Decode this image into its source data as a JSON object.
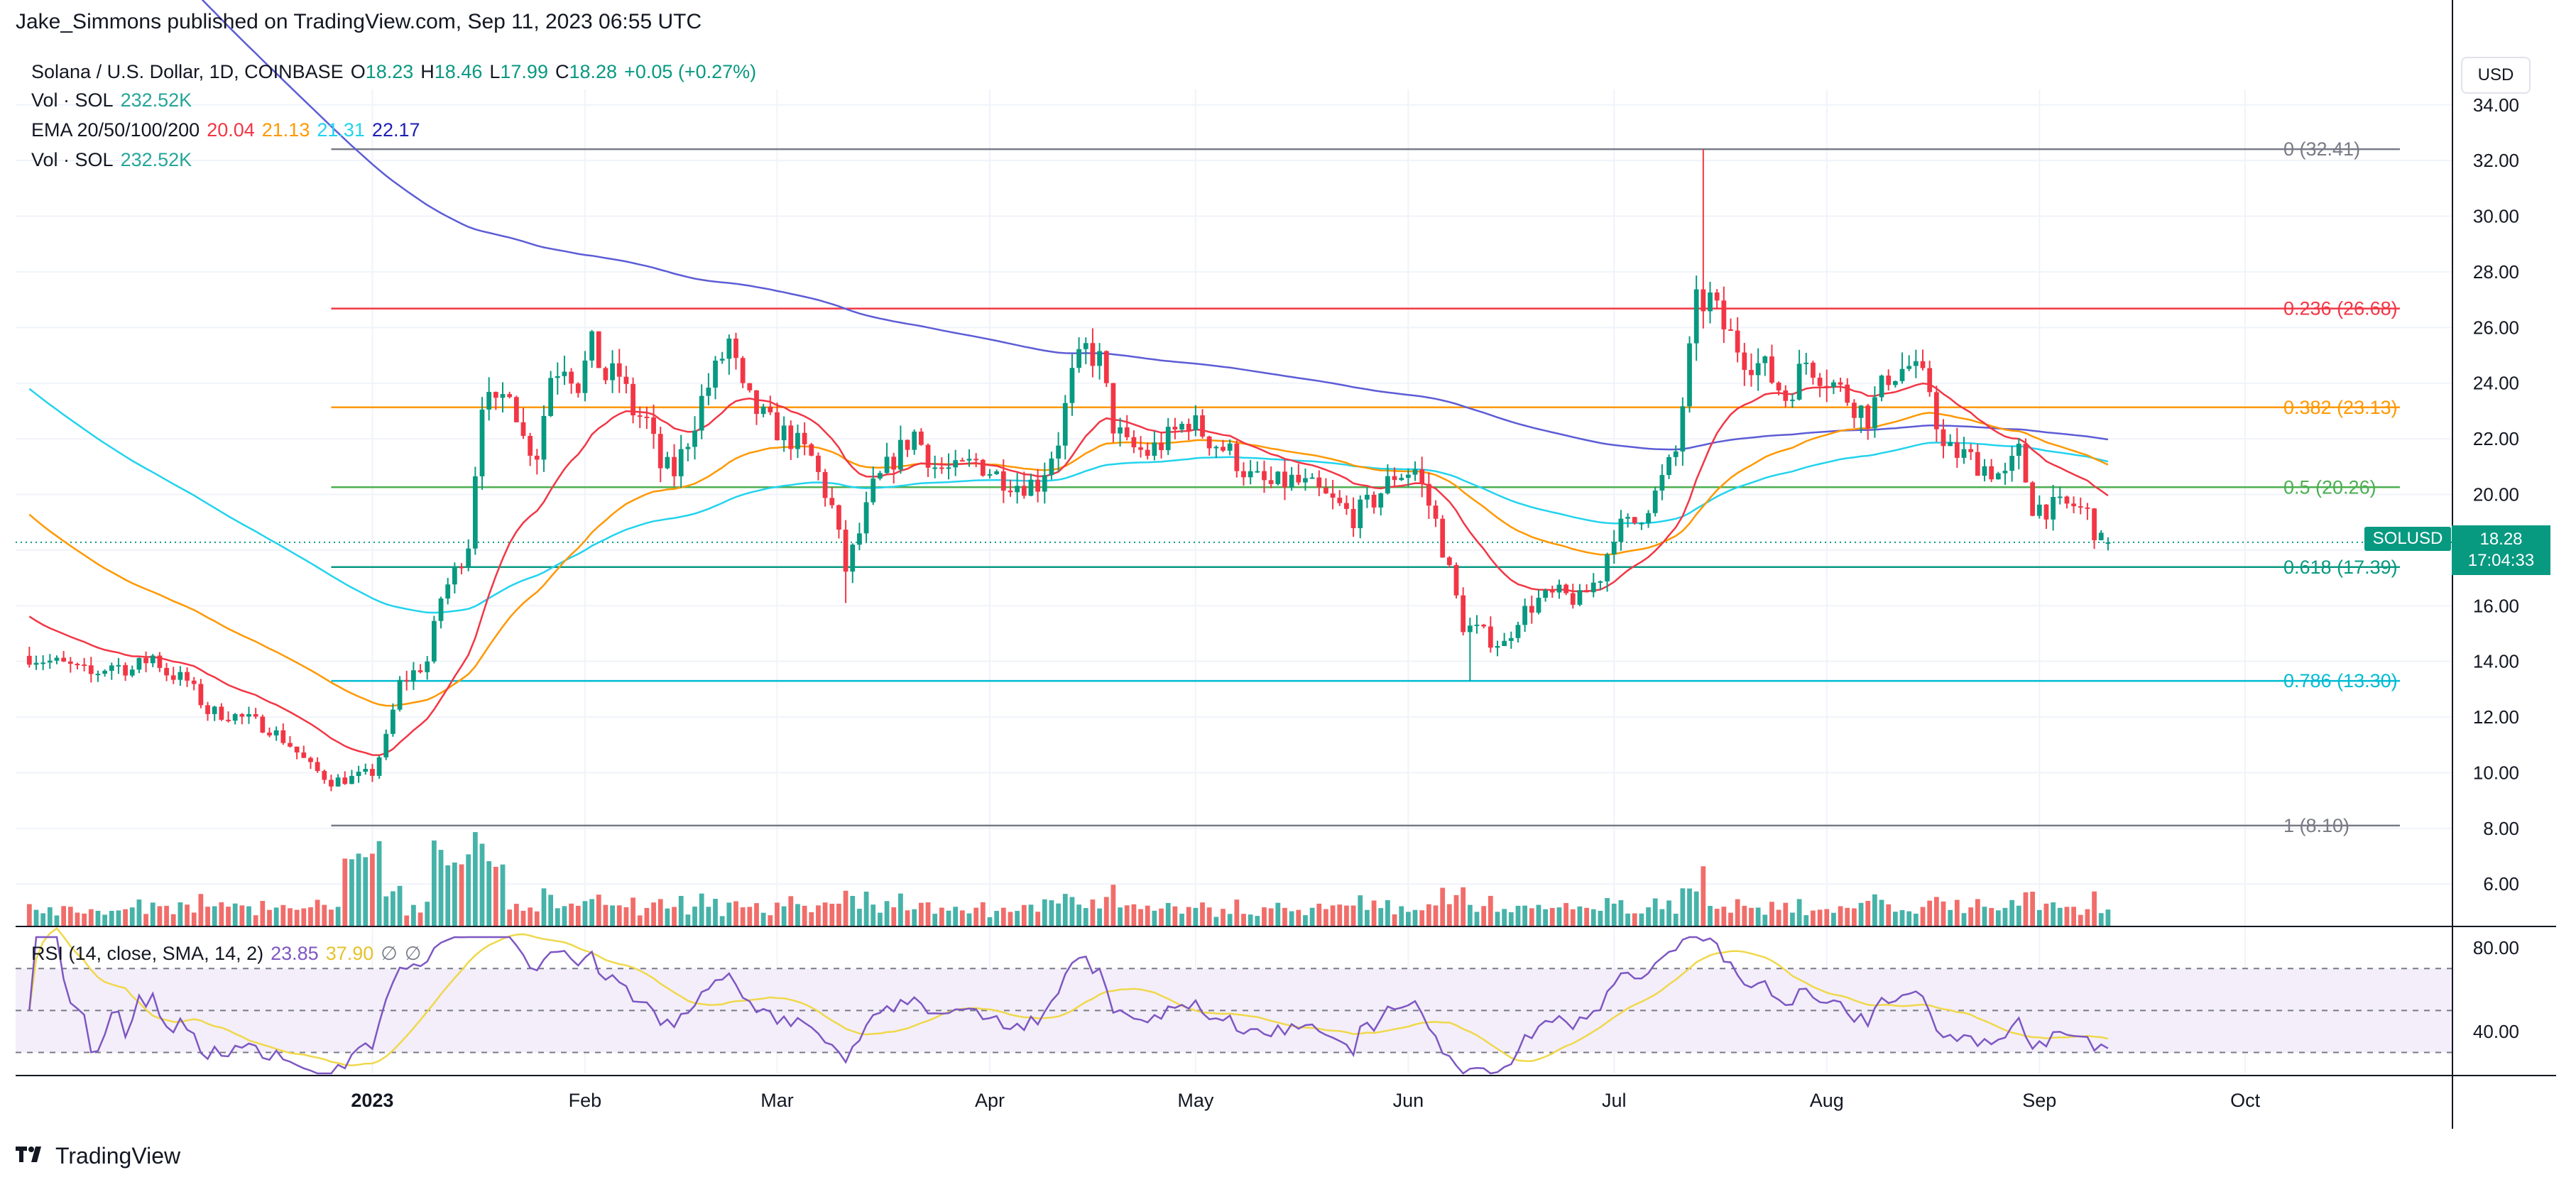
{
  "header": {
    "published_by": "Jake_Simmons published on TradingView.com, Sep 11, 2023 06:55 UTC"
  },
  "legend": {
    "symbol": "Solana / U.S. Dollar, 1D, COINBASE",
    "open_label": "O",
    "open": "18.23",
    "high_label": "H",
    "high": "18.46",
    "low_label": "L",
    "low": "17.99",
    "close_label": "C",
    "close": "18.28",
    "change": "+0.05 (+0.27%)",
    "vol_label": "Vol · SOL",
    "vol_value": "232.52K",
    "ema_label": "EMA 20/50/100/200",
    "ema20": "20.04",
    "ema50": "21.13",
    "ema100": "21.31",
    "ema200": "22.17",
    "vol2_label": "Vol · SOL",
    "vol2_value": "232.52K"
  },
  "rsi_legend": {
    "label": "RSI (14, close, SMA, 14, 2)",
    "rsi": "23.85",
    "sma": "37.90",
    "hidden_glyph": "∅"
  },
  "currency_button": "USD",
  "price_tag": {
    "symbol": "SOLUSD",
    "price": "18.28",
    "countdown": "17:04:33"
  },
  "footer": {
    "brand": "TradingView"
  },
  "colors": {
    "up": "#089981",
    "down": "#f23645",
    "up_vol": "#26a69a",
    "down_vol": "#ef5350",
    "ema20": "#f23645",
    "ema50": "#ff9800",
    "ema100": "#22d3ee",
    "ema200": "#5c5cd6",
    "rsi": "#7e57c2",
    "rsi_sma": "#f0d84a",
    "rsi_band": "#f3eefa"
  },
  "chart_data": {
    "type": "candlestick",
    "title": "Solana / U.S. Dollar, 1D, COINBASE",
    "x_ticks": [
      "2023",
      "Feb",
      "Mar",
      "Apr",
      "May",
      "Jun",
      "Jul",
      "Aug",
      "Sep",
      "Oct"
    ],
    "y_ticks": [
      "34.00",
      "32.00",
      "30.00",
      "28.00",
      "26.00",
      "24.00",
      "22.00",
      "20.00",
      "18.00",
      "16.00",
      "14.00",
      "12.00",
      "10.00",
      "8.00",
      "6.00"
    ],
    "ylim": [
      4.5,
      34.3
    ],
    "rsi_ticks": [
      "80.00",
      "40.00"
    ],
    "rsi_lim": [
      20,
      85
    ],
    "rsi_band": [
      30,
      70
    ],
    "fib_levels": [
      {
        "label": "0 (32.41)",
        "value": 32.41,
        "color": "#787b86"
      },
      {
        "label": "0.236 (26.68)",
        "value": 26.68,
        "color": "#f23645"
      },
      {
        "label": "0.382 (23.13)",
        "value": 23.13,
        "color": "#ff9800"
      },
      {
        "label": "0.5 (20.26)",
        "value": 20.26,
        "color": "#4caf50"
      },
      {
        "label": "0.618 (17.39)",
        "value": 17.39,
        "color": "#089981"
      },
      {
        "label": "0.786 (13.30)",
        "value": 13.3,
        "color": "#00bcd4"
      },
      {
        "label": "1 (8.10)",
        "value": 8.1,
        "color": "#787b86"
      }
    ],
    "close_path": [
      [
        "2022-11-12",
        14.2
      ],
      [
        "2022-11-15",
        14.0
      ],
      [
        "2022-11-18",
        13.8
      ],
      [
        "2022-11-21",
        13.5
      ],
      [
        "2022-11-24",
        13.9
      ],
      [
        "2022-11-27",
        13.7
      ],
      [
        "2022-11-30",
        14.2
      ],
      [
        "2022-12-02",
        13.6
      ],
      [
        "2022-12-05",
        13.3
      ],
      [
        "2022-12-08",
        12.2
      ],
      [
        "2022-12-11",
        12.1
      ],
      [
        "2022-12-14",
        11.9
      ],
      [
        "2022-12-17",
        11.6
      ],
      [
        "2022-12-20",
        11.0
      ],
      [
        "2022-12-23",
        10.2
      ],
      [
        "2022-12-26",
        9.7
      ],
      [
        "2022-12-29",
        9.8
      ],
      [
        "2023-01-01",
        10.0
      ],
      [
        "2023-01-03",
        11.2
      ],
      [
        "2023-01-05",
        13.2
      ],
      [
        "2023-01-07",
        13.6
      ],
      [
        "2023-01-09",
        14.0
      ],
      [
        "2023-01-11",
        16.3
      ],
      [
        "2023-01-13",
        17.2
      ],
      [
        "2023-01-15",
        18.3
      ],
      [
        "2023-01-17",
        23.5
      ],
      [
        "2023-01-19",
        23.0
      ],
      [
        "2023-01-21",
        24.0
      ],
      [
        "2023-01-23",
        22.0
      ],
      [
        "2023-01-25",
        21.5
      ],
      [
        "2023-01-27",
        24.3
      ],
      [
        "2023-01-29",
        24.8
      ],
      [
        "2023-01-31",
        24.0
      ],
      [
        "2023-02-02",
        25.3
      ],
      [
        "2023-02-04",
        24.2
      ],
      [
        "2023-02-06",
        24.3
      ],
      [
        "2023-02-08",
        23.0
      ],
      [
        "2023-02-10",
        22.6
      ],
      [
        "2023-02-12",
        21.0
      ],
      [
        "2023-02-14",
        20.8
      ],
      [
        "2023-02-16",
        22.0
      ],
      [
        "2023-02-18",
        23.4
      ],
      [
        "2023-02-20",
        24.4
      ],
      [
        "2023-02-22",
        25.5
      ],
      [
        "2023-02-24",
        23.6
      ],
      [
        "2023-02-26",
        23.0
      ],
      [
        "2023-02-28",
        22.5
      ],
      [
        "2023-03-03",
        22.0
      ],
      [
        "2023-03-06",
        21.3
      ],
      [
        "2023-03-09",
        19.5
      ],
      [
        "2023-03-11",
        17.3
      ],
      [
        "2023-03-13",
        18.6
      ],
      [
        "2023-03-15",
        20.2
      ],
      [
        "2023-03-18",
        21.3
      ],
      [
        "2023-03-21",
        22.2
      ],
      [
        "2023-03-24",
        21.0
      ],
      [
        "2023-03-27",
        20.8
      ],
      [
        "2023-03-30",
        21.2
      ],
      [
        "2023-04-02",
        20.7
      ],
      [
        "2023-04-05",
        20.4
      ],
      [
        "2023-04-08",
        20.4
      ],
      [
        "2023-04-11",
        22.0
      ],
      [
        "2023-04-13",
        24.2
      ],
      [
        "2023-04-15",
        25.2
      ],
      [
        "2023-04-17",
        24.8
      ],
      [
        "2023-04-19",
        22.5
      ],
      [
        "2023-04-21",
        21.7
      ],
      [
        "2023-04-24",
        21.5
      ],
      [
        "2023-04-27",
        22.0
      ],
      [
        "2023-04-30",
        22.7
      ],
      [
        "2023-05-03",
        22.0
      ],
      [
        "2023-05-06",
        21.5
      ],
      [
        "2023-05-09",
        20.6
      ],
      [
        "2023-05-12",
        20.3
      ],
      [
        "2023-05-15",
        20.5
      ],
      [
        "2023-05-18",
        20.2
      ],
      [
        "2023-05-21",
        19.7
      ],
      [
        "2023-05-24",
        19.2
      ],
      [
        "2023-05-27",
        19.8
      ],
      [
        "2023-05-30",
        20.7
      ],
      [
        "2023-06-02",
        20.9
      ],
      [
        "2023-06-05",
        19.0
      ],
      [
        "2023-06-07",
        17.2
      ],
      [
        "2023-06-09",
        15.3
      ],
      [
        "2023-06-11",
        15.1
      ],
      [
        "2023-06-13",
        14.8
      ],
      [
        "2023-06-15",
        14.6
      ],
      [
        "2023-06-17",
        15.6
      ],
      [
        "2023-06-20",
        16.2
      ],
      [
        "2023-06-23",
        16.4
      ],
      [
        "2023-06-26",
        16.2
      ],
      [
        "2023-06-29",
        17.1
      ],
      [
        "2023-07-01",
        18.7
      ],
      [
        "2023-07-04",
        19.0
      ],
      [
        "2023-07-07",
        20.0
      ],
      [
        "2023-07-10",
        21.5
      ],
      [
        "2023-07-13",
        26.8
      ],
      [
        "2023-07-15",
        27.0
      ],
      [
        "2023-07-17",
        26.0
      ],
      [
        "2023-07-20",
        25.0
      ],
      [
        "2023-07-23",
        24.5
      ],
      [
        "2023-07-26",
        23.5
      ],
      [
        "2023-07-29",
        24.8
      ],
      [
        "2023-08-01",
        24.2
      ],
      [
        "2023-08-04",
        23.5
      ],
      [
        "2023-08-07",
        22.8
      ],
      [
        "2023-08-10",
        24.3
      ],
      [
        "2023-08-13",
        24.6
      ],
      [
        "2023-08-16",
        23.8
      ],
      [
        "2023-08-18",
        21.6
      ],
      [
        "2023-08-21",
        21.4
      ],
      [
        "2023-08-24",
        21.0
      ],
      [
        "2023-08-27",
        20.6
      ],
      [
        "2023-08-29",
        21.5
      ],
      [
        "2023-08-31",
        19.6
      ],
      [
        "2023-09-03",
        19.5
      ],
      [
        "2023-09-06",
        19.6
      ],
      [
        "2023-09-08",
        19.3
      ],
      [
        "2023-09-10",
        18.23
      ],
      [
        "2023-09-11",
        18.28
      ]
    ]
  }
}
